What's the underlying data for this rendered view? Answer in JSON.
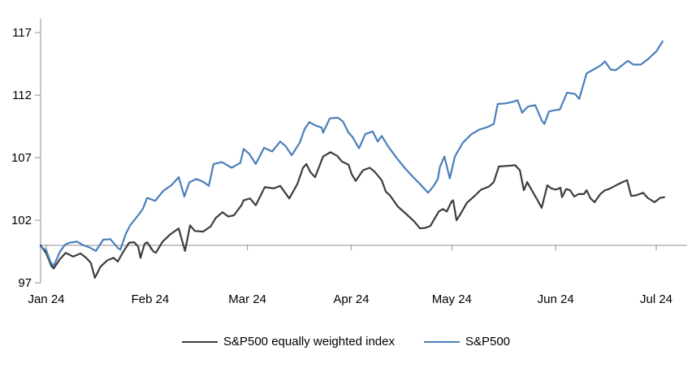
{
  "chart_data": {
    "type": "line",
    "title": "",
    "x_axis": {
      "unit": "month",
      "tick_labels": [
        "Jan 24",
        "Feb 24",
        "Mar 24",
        "Apr 24",
        "May 24",
        "Jun 24",
        "Jul 24"
      ],
      "tick_days": [
        0,
        31,
        60,
        91,
        121,
        152,
        182
      ]
    },
    "y_axis": {
      "ticks": [
        117,
        112,
        107,
        102,
        97
      ],
      "range": [
        97,
        118.2
      ],
      "baseline_value": 100
    },
    "grid": "baseline-only",
    "legend_position": "bottom",
    "colors": {
      "axis": "#a6a6a6",
      "text": "#000000"
    },
    "series": [
      {
        "name": "S&P500 equally weighted index",
        "color": "#3d3d3d",
        "points": [
          [
            -1.7,
            100.0
          ],
          [
            0,
            99.35
          ],
          [
            1.5,
            98.35
          ],
          [
            2.2,
            98.15
          ],
          [
            4.1,
            98.9
          ],
          [
            5.8,
            99.4
          ],
          [
            8.0,
            99.1
          ],
          [
            10.2,
            99.35
          ],
          [
            11.9,
            99.0
          ],
          [
            13.3,
            98.6
          ],
          [
            14.5,
            97.4
          ],
          [
            16.2,
            98.3
          ],
          [
            18.2,
            98.8
          ],
          [
            20.1,
            99.0
          ],
          [
            21.3,
            98.7
          ],
          [
            23.0,
            99.5
          ],
          [
            24.7,
            100.2
          ],
          [
            26.2,
            100.25
          ],
          [
            27.4,
            99.9
          ],
          [
            28.1,
            99.0
          ],
          [
            29.3,
            100.1
          ],
          [
            30.1,
            100.25
          ],
          [
            32.0,
            99.5
          ],
          [
            32.7,
            99.4
          ],
          [
            34.7,
            100.3
          ],
          [
            37.1,
            100.9
          ],
          [
            39.5,
            101.35
          ],
          [
            41.4,
            99.55
          ],
          [
            42.9,
            101.6
          ],
          [
            44.3,
            101.15
          ],
          [
            46.8,
            101.1
          ],
          [
            49.0,
            101.5
          ],
          [
            50.6,
            102.2
          ],
          [
            52.6,
            102.65
          ],
          [
            54.3,
            102.3
          ],
          [
            56.0,
            102.4
          ],
          [
            58.2,
            103.2
          ],
          [
            58.9,
            103.6
          ],
          [
            60.8,
            103.75
          ],
          [
            62.5,
            103.2
          ],
          [
            65.2,
            104.65
          ],
          [
            67.9,
            104.55
          ],
          [
            69.8,
            104.75
          ],
          [
            72.5,
            103.75
          ],
          [
            74.9,
            104.9
          ],
          [
            76.6,
            106.2
          ],
          [
            77.6,
            106.5
          ],
          [
            78.8,
            105.85
          ],
          [
            80.2,
            105.45
          ],
          [
            82.6,
            107.1
          ],
          [
            84.8,
            107.45
          ],
          [
            86.8,
            107.15
          ],
          [
            88.2,
            106.7
          ],
          [
            90.2,
            106.45
          ],
          [
            91.1,
            105.7
          ],
          [
            92.3,
            105.15
          ],
          [
            94.5,
            106.0
          ],
          [
            96.5,
            106.2
          ],
          [
            97.9,
            105.9
          ],
          [
            100.1,
            105.2
          ],
          [
            101.3,
            104.3
          ],
          [
            102.5,
            104.0
          ],
          [
            104.9,
            103.1
          ],
          [
            107.4,
            102.5
          ],
          [
            109.8,
            101.9
          ],
          [
            111.5,
            101.35
          ],
          [
            113.2,
            101.4
          ],
          [
            114.6,
            101.55
          ],
          [
            117.1,
            102.7
          ],
          [
            118.3,
            102.9
          ],
          [
            119.5,
            102.7
          ],
          [
            120.9,
            103.5
          ],
          [
            121.4,
            103.6
          ],
          [
            122.4,
            102.0
          ],
          [
            123.8,
            102.6
          ],
          [
            125.5,
            103.4
          ],
          [
            128.0,
            104.0
          ],
          [
            129.7,
            104.45
          ],
          [
            132.1,
            104.7
          ],
          [
            133.5,
            105.05
          ],
          [
            135.0,
            106.3
          ],
          [
            137.6,
            106.35
          ],
          [
            139.9,
            106.4
          ],
          [
            141.3,
            106.0
          ],
          [
            142.5,
            104.4
          ],
          [
            143.5,
            105.05
          ],
          [
            145.2,
            104.25
          ],
          [
            146.6,
            103.6
          ],
          [
            147.8,
            103.0
          ],
          [
            149.5,
            104.8
          ],
          [
            150.7,
            104.55
          ],
          [
            152.0,
            104.45
          ],
          [
            153.4,
            104.6
          ],
          [
            153.9,
            103.85
          ],
          [
            155.1,
            104.5
          ],
          [
            156.3,
            104.4
          ],
          [
            157.5,
            103.9
          ],
          [
            158.8,
            104.1
          ],
          [
            160.4,
            104.1
          ],
          [
            161.2,
            104.4
          ],
          [
            162.4,
            103.75
          ],
          [
            163.6,
            103.45
          ],
          [
            165.3,
            104.1
          ],
          [
            166.7,
            104.4
          ],
          [
            167.9,
            104.5
          ],
          [
            170.4,
            104.85
          ],
          [
            172.3,
            105.1
          ],
          [
            173.3,
            105.2
          ],
          [
            174.5,
            103.95
          ],
          [
            176.0,
            104.0
          ],
          [
            178.1,
            104.2
          ],
          [
            179.4,
            103.8
          ],
          [
            181.5,
            103.45
          ],
          [
            183.2,
            103.8
          ],
          [
            184.4,
            103.85
          ]
        ]
      },
      {
        "name": "S&P500",
        "color": "#4a7fba",
        "points": [
          [
            -1.7,
            99.9
          ],
          [
            0,
            99.6
          ],
          [
            1.2,
            98.7
          ],
          [
            2.2,
            98.35
          ],
          [
            4.1,
            99.5
          ],
          [
            5.6,
            100.05
          ],
          [
            6.8,
            100.2
          ],
          [
            9.2,
            100.3
          ],
          [
            11.1,
            100.0
          ],
          [
            12.8,
            99.85
          ],
          [
            14.8,
            99.55
          ],
          [
            17.0,
            100.45
          ],
          [
            19.1,
            100.5
          ],
          [
            21.3,
            99.8
          ],
          [
            22.1,
            99.65
          ],
          [
            23.7,
            100.9
          ],
          [
            25.0,
            101.6
          ],
          [
            27.4,
            102.4
          ],
          [
            28.8,
            102.9
          ],
          [
            30.1,
            103.8
          ],
          [
            32.5,
            103.55
          ],
          [
            34.9,
            104.35
          ],
          [
            37.3,
            104.8
          ],
          [
            39.5,
            105.45
          ],
          [
            41.2,
            103.9
          ],
          [
            42.7,
            105.05
          ],
          [
            44.8,
            105.3
          ],
          [
            47.0,
            105.05
          ],
          [
            48.5,
            104.75
          ],
          [
            49.9,
            106.5
          ],
          [
            52.4,
            106.65
          ],
          [
            55.3,
            106.2
          ],
          [
            57.9,
            106.6
          ],
          [
            58.9,
            107.7
          ],
          [
            60.6,
            107.3
          ],
          [
            62.5,
            106.5
          ],
          [
            65.0,
            107.8
          ],
          [
            67.4,
            107.5
          ],
          [
            69.8,
            108.3
          ],
          [
            71.5,
            107.9
          ],
          [
            73.2,
            107.2
          ],
          [
            75.6,
            108.2
          ],
          [
            77.1,
            109.3
          ],
          [
            78.5,
            109.85
          ],
          [
            80.2,
            109.6
          ],
          [
            82.2,
            109.4
          ],
          [
            82.6,
            109.0
          ],
          [
            84.6,
            110.15
          ],
          [
            87.0,
            110.2
          ],
          [
            88.5,
            109.9
          ],
          [
            90.2,
            109.0
          ],
          [
            91.4,
            108.65
          ],
          [
            93.3,
            107.75
          ],
          [
            95.2,
            108.9
          ],
          [
            97.4,
            109.1
          ],
          [
            98.9,
            108.3
          ],
          [
            100.1,
            108.75
          ],
          [
            102.0,
            107.9
          ],
          [
            104.5,
            107.0
          ],
          [
            106.9,
            106.2
          ],
          [
            109.3,
            105.5
          ],
          [
            111.7,
            104.85
          ],
          [
            113.9,
            104.2
          ],
          [
            115.6,
            104.75
          ],
          [
            116.8,
            105.3
          ],
          [
            117.5,
            106.3
          ],
          [
            118.8,
            107.1
          ],
          [
            120.4,
            105.35
          ],
          [
            121.9,
            107.1
          ],
          [
            124.3,
            108.2
          ],
          [
            126.7,
            108.85
          ],
          [
            129.2,
            109.25
          ],
          [
            131.6,
            109.45
          ],
          [
            133.5,
            109.7
          ],
          [
            134.7,
            111.3
          ],
          [
            137.2,
            111.35
          ],
          [
            139.6,
            111.5
          ],
          [
            140.6,
            111.6
          ],
          [
            142.0,
            110.6
          ],
          [
            143.7,
            111.1
          ],
          [
            145.9,
            111.2
          ],
          [
            147.8,
            110.0
          ],
          [
            148.6,
            109.7
          ],
          [
            150.0,
            110.7
          ],
          [
            151.7,
            110.8
          ],
          [
            153.2,
            110.85
          ],
          [
            155.4,
            112.2
          ],
          [
            157.8,
            112.1
          ],
          [
            159.0,
            111.7
          ],
          [
            161.2,
            113.75
          ],
          [
            163.6,
            114.1
          ],
          [
            165.5,
            114.4
          ],
          [
            166.7,
            114.7
          ],
          [
            168.4,
            114.05
          ],
          [
            169.9,
            114.0
          ],
          [
            172.1,
            114.45
          ],
          [
            173.5,
            114.75
          ],
          [
            175.2,
            114.45
          ],
          [
            177.4,
            114.45
          ],
          [
            179.4,
            114.85
          ],
          [
            182.0,
            115.5
          ],
          [
            183.9,
            116.3
          ]
        ]
      }
    ]
  },
  "legend": {
    "items": [
      {
        "label": "S&P500 equally weighted index"
      },
      {
        "label": "S&P500"
      }
    ]
  }
}
